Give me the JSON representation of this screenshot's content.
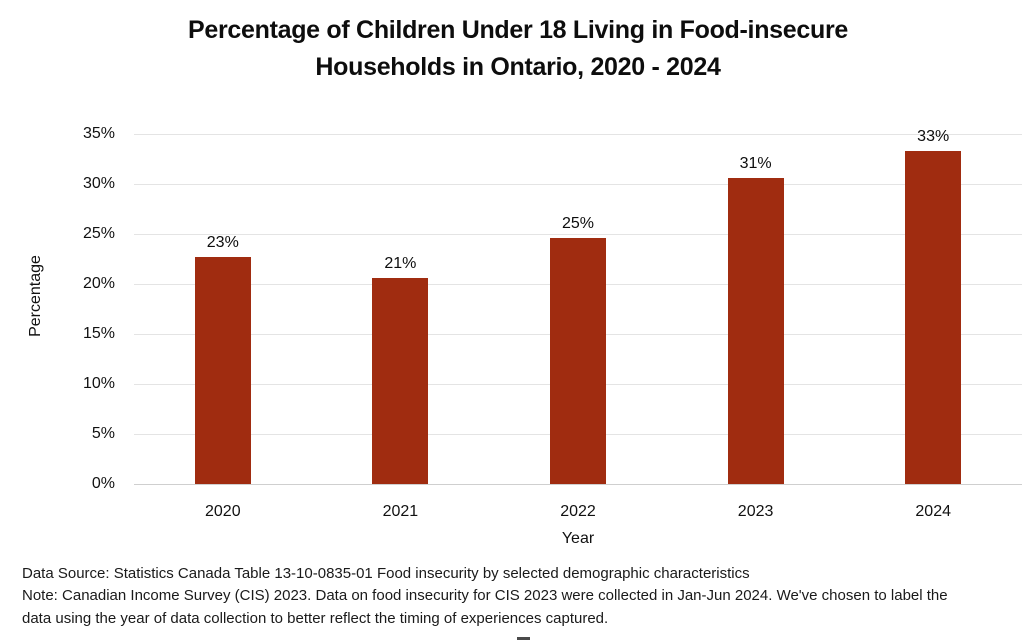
{
  "chart_data": {
    "type": "bar",
    "title": "Percentage of Children Under 18 Living in Food-insecure\nHouseholds in Ontario, 2020 - 2024",
    "categories": [
      "2020",
      "2021",
      "2022",
      "2023",
      "2024"
    ],
    "values": [
      22.7,
      20.6,
      24.6,
      30.6,
      33.3
    ],
    "value_labels": [
      "23%",
      "21%",
      "25%",
      "31%",
      "33%"
    ],
    "xlabel": "Year",
    "ylabel": "Percentage",
    "ylim": [
      0,
      35
    ],
    "ytick_step": 5,
    "ytick_labels": [
      "0%",
      "5%",
      "10%",
      "15%",
      "20%",
      "25%",
      "30%",
      "35%"
    ],
    "grid": true,
    "legend": "none",
    "bar_color": "#A02C10",
    "gridline_color": "#E4E4E4",
    "baseline_color": "#CFCFCF",
    "label_color": "#0D0D0D"
  },
  "footer": {
    "lines": [
      "Data Source: Statistics Canada Table 13-10-0835-01 Food insecurity by selected demographic characteristics",
      "Note: Canadian Income Survey (CIS) 2023. Data on food insecurity for CIS 2023 were collected in Jan-Jun 2024. We've chosen to label the",
      "data using the year of data collection to better reflect the timing of experiences captured."
    ]
  }
}
